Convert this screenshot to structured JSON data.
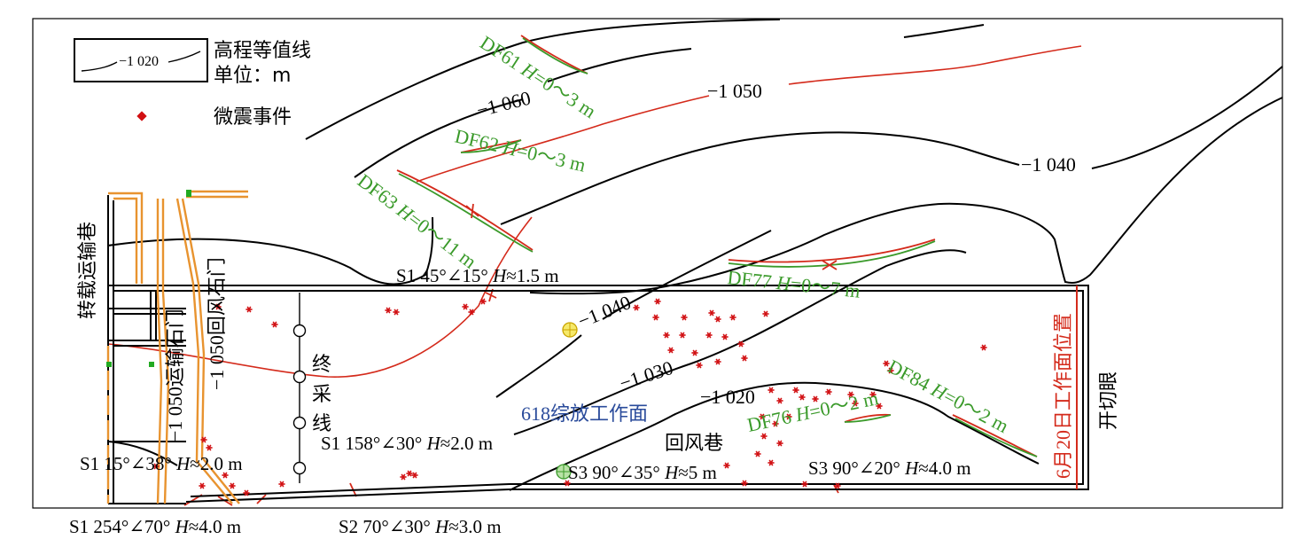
{
  "legend": {
    "contour_sample": "−1 020",
    "contour_title": "高程等值线",
    "unit_label": "单位：m",
    "event_label": "微震事件"
  },
  "contour_labels": {
    "c1060": "−1 060",
    "c1050": "−1 050",
    "c1040_top": "−1 040",
    "c1040_mid": "−1 040",
    "c1030": "−1 030",
    "c1020": "−1 020"
  },
  "faults": {
    "df61": {
      "name": "DF61",
      "h": "H",
      "range": "=0～3 m"
    },
    "df62": {
      "name": "DF62",
      "h": "H",
      "range": "=0～3 m"
    },
    "df63": {
      "name": "DF63",
      "h": "H",
      "range": "=0～11 m"
    },
    "df77": {
      "name": "DF77",
      "h": "H",
      "range": "=0～7 m"
    },
    "df76": {
      "name": "DF76",
      "h": "H",
      "range": "=0～2 m"
    },
    "df84": {
      "name": "DF84",
      "h": "H",
      "range": "=0～2 m"
    }
  },
  "annotations": {
    "s1_top": {
      "a": "S1 45°∠15° ",
      "h": "H",
      "b": "≈1.5 m"
    },
    "s1_158": {
      "a": "S1 158°∠30° ",
      "h": "H",
      "b": "≈2.0 m"
    },
    "s1_15": {
      "a": "S1 15°∠38° ",
      "h": "H",
      "b": "≈2.0 m"
    },
    "s3_90_35": {
      "a": "S3 90°∠35° ",
      "h": "H",
      "b": "≈5 m"
    },
    "s3_90_20": {
      "a": "S3 90°∠20° ",
      "h": "H",
      "b": "≈4.0 m"
    },
    "s1_254": {
      "a": "S1 254°∠70° ",
      "h": "H",
      "b": "≈4.0 m"
    },
    "s2_70": {
      "a": "S2 70°∠30° ",
      "h": "H",
      "b": "≈3.0 m"
    }
  },
  "roadways": {
    "transfer": "转载运输巷",
    "transport_crosscut": "−1 050运输石门",
    "return_crosscut": "−1 050回风石门",
    "stop_line_1": "终",
    "stop_line_2": "采",
    "stop_line_3": "线",
    "workface": "618综放工作面",
    "return_roadway": "回风巷",
    "open_cut": "开切眼",
    "june20": "6月20日工作面位置"
  },
  "colors": {
    "contour": "#000000",
    "red_contour": "#d42a1b",
    "fault_green": "#3a9a2a",
    "event_red": "#d10f12",
    "roadway_orange": "#e8932f",
    "workface_blue": "#2a4b9b"
  },
  "microseismic_event_count": 62
}
